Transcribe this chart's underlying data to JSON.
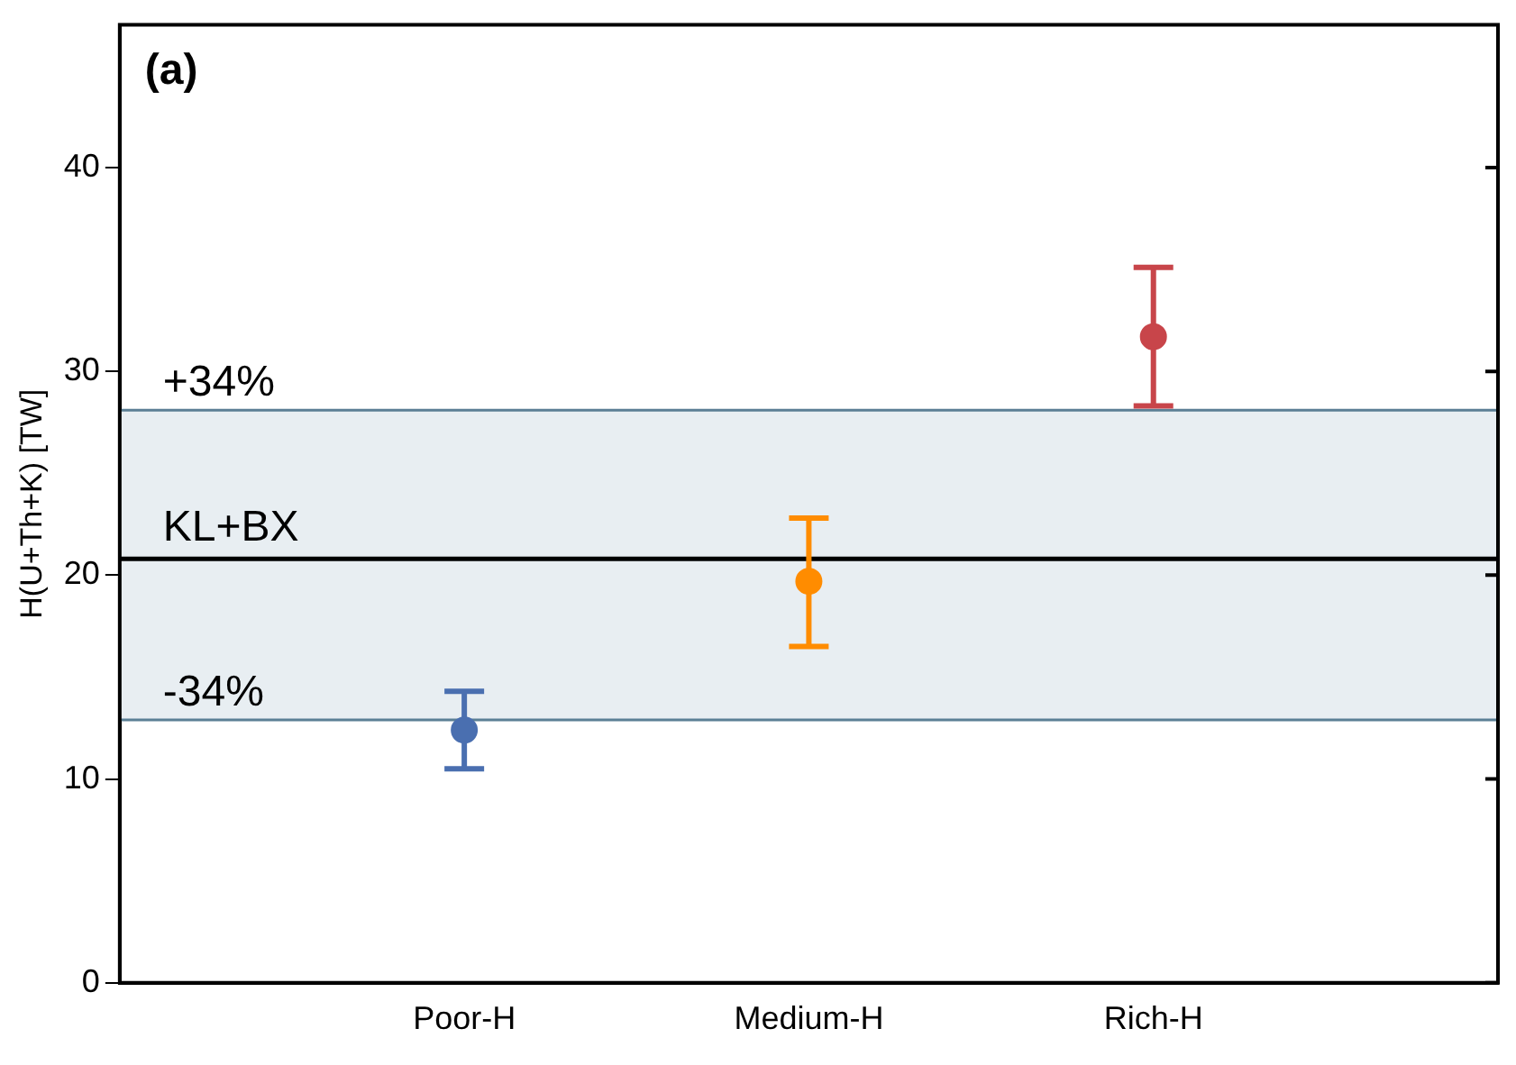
{
  "chart_data": {
    "type": "scatter",
    "categories": [
      null,
      "Poor-H",
      "Medium-H",
      "Rich-H",
      null
    ],
    "values": [
      null,
      12.4,
      19.7,
      31.7,
      null
    ],
    "colors": [
      "#4a6fb0",
      "#4a6fb0",
      "#ff8c00",
      "#c8454a",
      "#c8454a"
    ],
    "errors": [
      null,
      [
        10.5,
        14.3
      ],
      [
        16.5,
        22.8
      ],
      [
        28.3,
        35.1
      ],
      null
    ],
    "ylabel": "H(U+Th+K) [TW]",
    "ylim": [
      0,
      47
    ],
    "yticks": [
      0,
      10,
      20,
      30,
      40
    ],
    "marker": "circle",
    "grid": false,
    "legend": false,
    "ref_lines": [
      {
        "axis": "y",
        "value": 20.8,
        "label": "KL+BX",
        "color": "#000000"
      },
      {
        "axis": "y",
        "value": 28.1,
        "color": "#5b7f95"
      },
      {
        "axis": "y",
        "value": 12.9,
        "color": "#5b7f95"
      }
    ],
    "bands": [
      {
        "axis": "y",
        "from": 12.9,
        "to": 28.1,
        "color": "#e8eef2"
      }
    ],
    "annotations": [
      "(a)",
      "+34%",
      "-34%"
    ]
  }
}
